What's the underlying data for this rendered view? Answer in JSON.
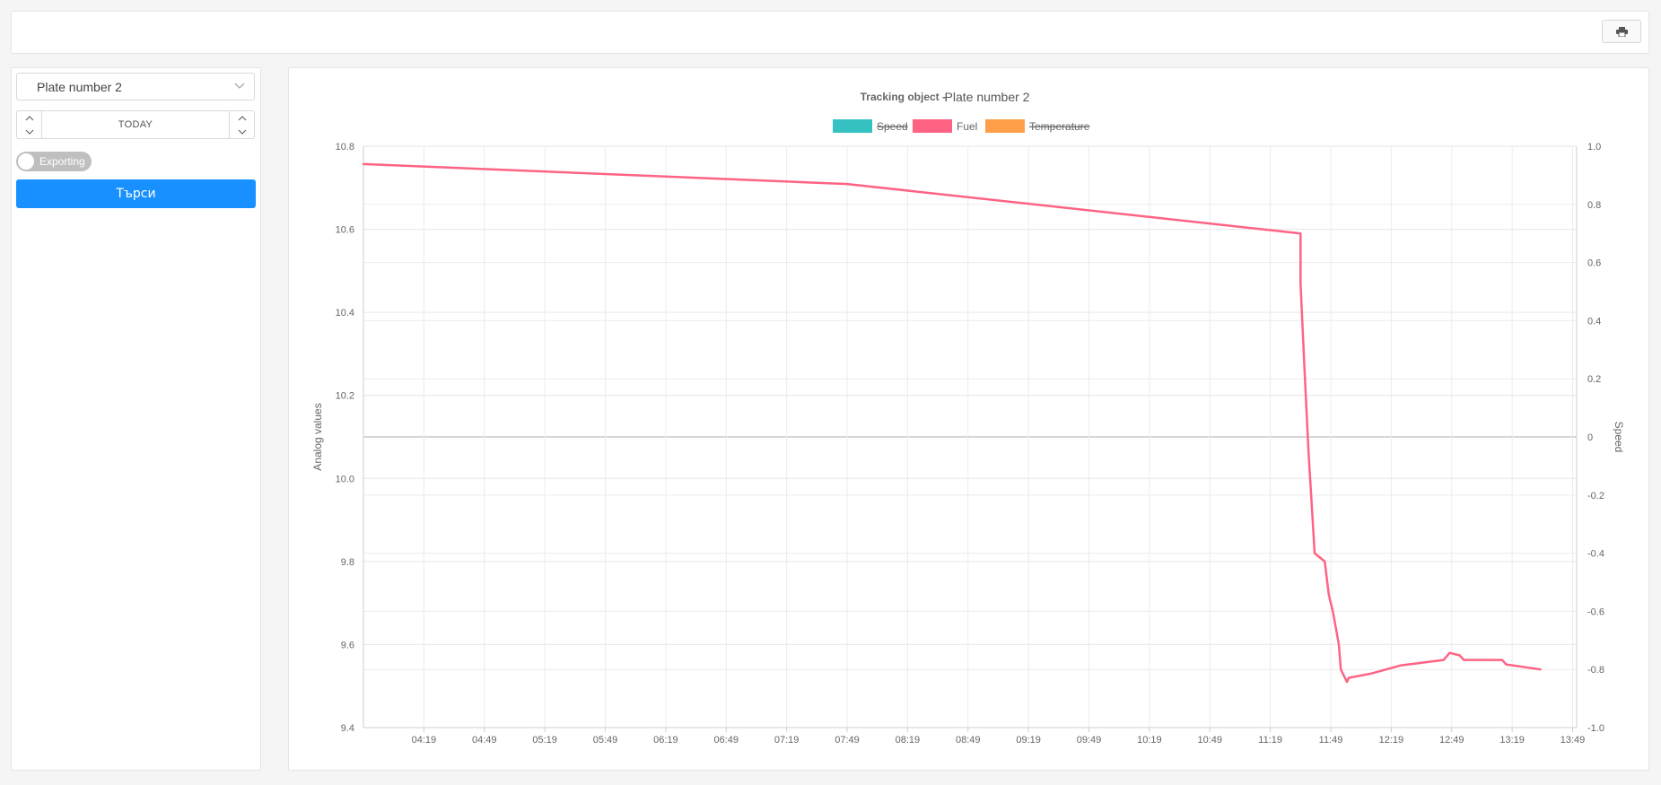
{
  "toolbar": {
    "print_icon": "printer-icon"
  },
  "sidebar": {
    "object_select": {
      "value": "Plate number 2"
    },
    "date_control": {
      "label": "TODAY"
    },
    "export_toggle": {
      "label": "Exporting",
      "on": false
    },
    "search_button": {
      "label": "Търси"
    }
  },
  "chart_data": {
    "type": "line",
    "title_label": "Tracking object -",
    "title_value": "Plate number 2",
    "legend_position": "top",
    "legend": [
      {
        "name": "Speed",
        "color": "#36c2c2",
        "hidden": true
      },
      {
        "name": "Fuel",
        "color": "#ff6384",
        "hidden": false
      },
      {
        "name": "Temperature",
        "color": "#ff9f4a",
        "hidden": true
      }
    ],
    "y_left": {
      "label": "Analog values",
      "min": 9.4,
      "max": 10.8,
      "ticks": [
        "10.8",
        "10.6",
        "10.4",
        "10.2",
        "10.0",
        "9.8",
        "9.6",
        "9.4"
      ]
    },
    "y_right": {
      "label": "Speed",
      "min": -1.0,
      "max": 1.0,
      "ticks": [
        "1.0",
        "0.8",
        "0.6",
        "0.4",
        "0.2",
        "0",
        "-0.2",
        "-0.4",
        "-0.6",
        "-0.8",
        "-1.0"
      ]
    },
    "x_axis": {
      "min": "03:49",
      "max": "13:51",
      "ticks": [
        "04:19",
        "04:49",
        "05:19",
        "05:49",
        "06:19",
        "06:49",
        "07:19",
        "07:49",
        "08:19",
        "08:49",
        "09:19",
        "09:49",
        "10:19",
        "10:49",
        "11:19",
        "11:49",
        "12:19",
        "12:49",
        "13:19",
        "13:49"
      ]
    },
    "grid": true,
    "series": [
      {
        "name": "Fuel",
        "color": "#ff6384",
        "points": [
          [
            "03:49",
            10.757
          ],
          [
            "07:49",
            10.709
          ],
          [
            "11:34",
            10.59
          ],
          [
            "11:34",
            10.47
          ],
          [
            "11:36",
            10.26
          ],
          [
            "11:38",
            10.06
          ],
          [
            "11:40",
            9.9
          ],
          [
            "11:41",
            9.82
          ],
          [
            "11:46",
            9.8
          ],
          [
            "11:48",
            9.72
          ],
          [
            "11:50",
            9.68
          ],
          [
            "11:53",
            9.6
          ],
          [
            "11:54",
            9.54
          ],
          [
            "11:57",
            9.51
          ],
          [
            "11:58",
            9.52
          ],
          [
            "12:09",
            9.53
          ],
          [
            "12:24",
            9.55
          ],
          [
            "12:45",
            9.563
          ],
          [
            "12:48",
            9.58
          ],
          [
            "12:53",
            9.574
          ],
          [
            "12:55",
            9.563
          ],
          [
            "13:14",
            9.563
          ],
          [
            "13:16",
            9.552
          ],
          [
            "13:33",
            9.54
          ]
        ]
      }
    ]
  }
}
